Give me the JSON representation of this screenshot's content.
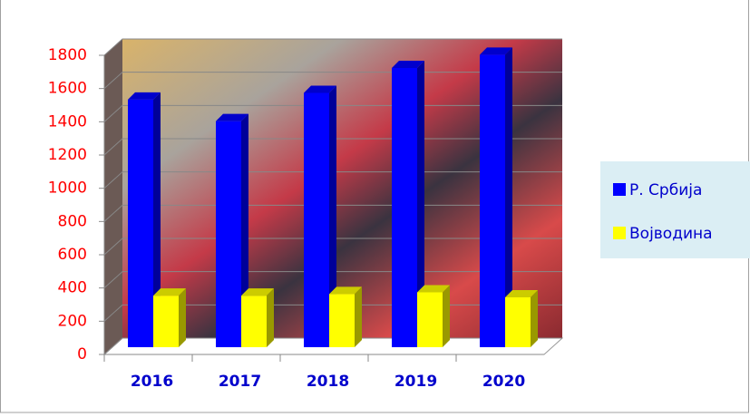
{
  "chart_data": {
    "type": "bar3d",
    "categories": [
      "2016",
      "2017",
      "2018",
      "2019",
      "2020"
    ],
    "series": [
      {
        "name": "Р. Србија",
        "color": "#0000ff",
        "values": [
          1490,
          1360,
          1530,
          1680,
          1760
        ]
      },
      {
        "name": "Војводина",
        "color": "#ffff00",
        "values": [
          310,
          310,
          320,
          330,
          300
        ]
      }
    ],
    "ylim": [
      0,
      1800
    ],
    "yticks": [
      0,
      200,
      400,
      600,
      800,
      1000,
      1200,
      1400,
      1600,
      1800
    ],
    "grid": true,
    "legend": "right"
  }
}
